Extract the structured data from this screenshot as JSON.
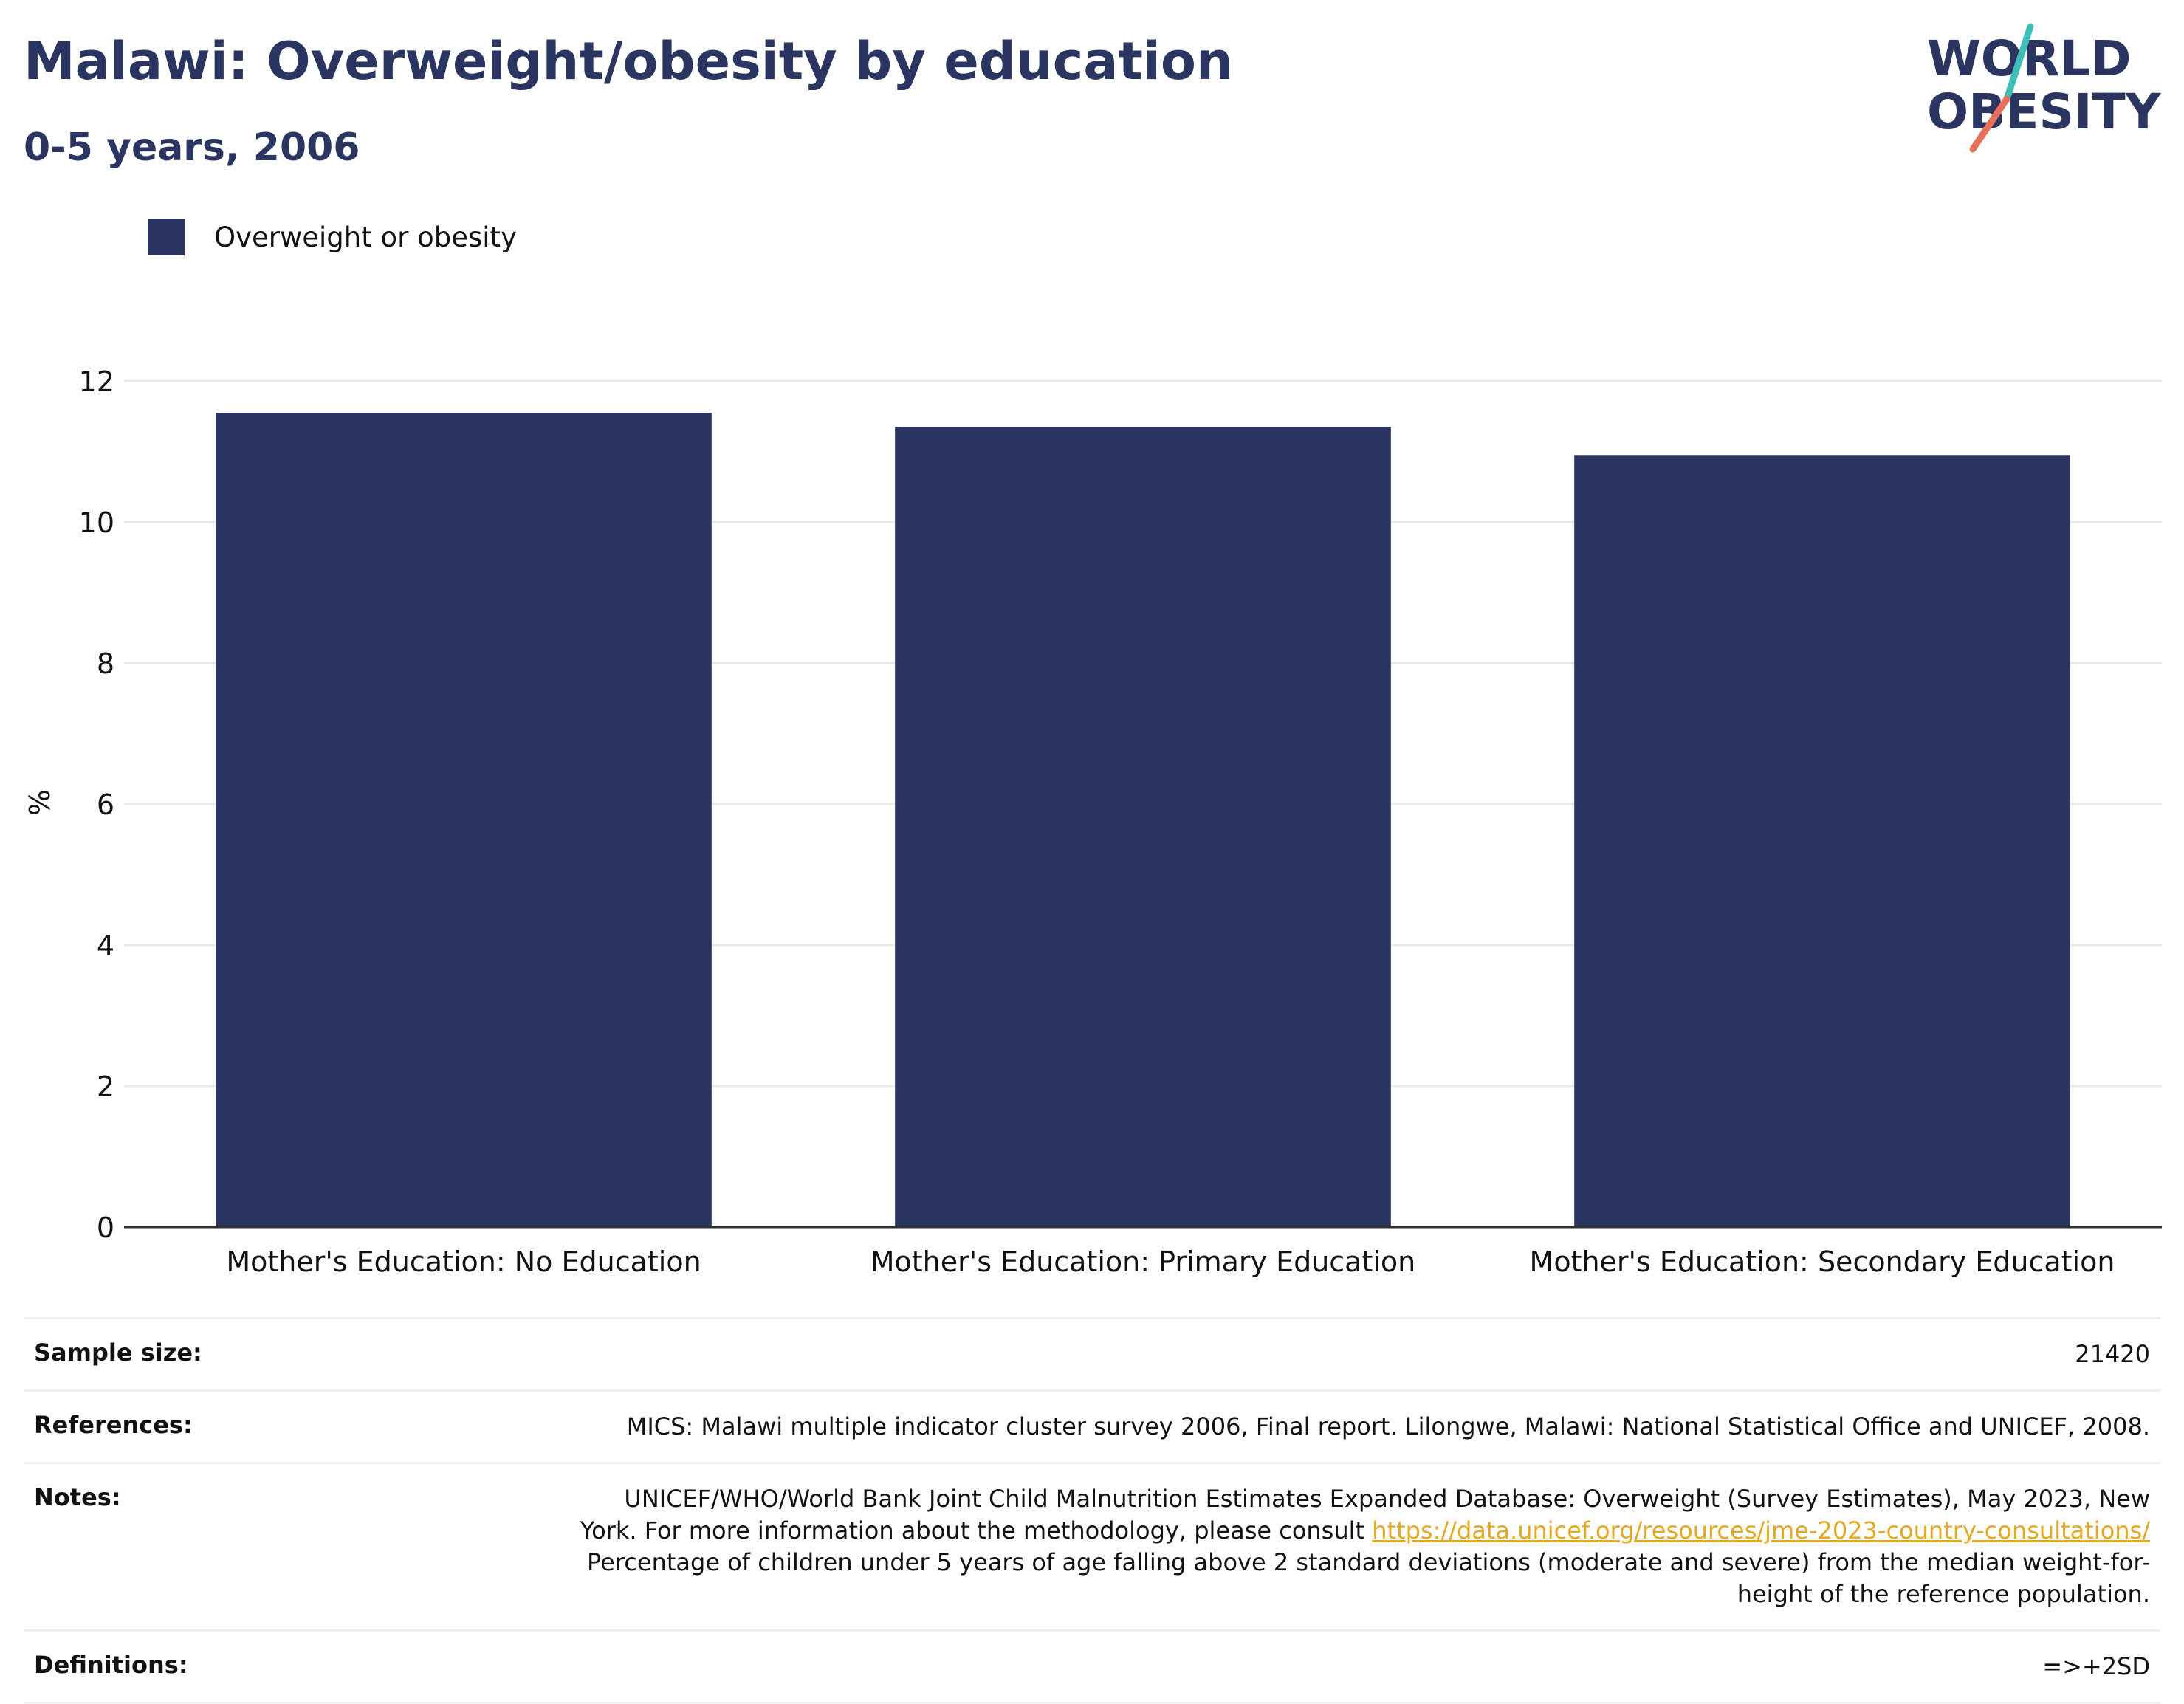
{
  "header": {
    "title": "Malawi: Overweight/obesity by education",
    "subtitle": "0-5 years, 2006"
  },
  "logo": {
    "line1": "WORLD",
    "line2": "OBESITY",
    "colors": {
      "text": "#2a3561",
      "slash_top": "#3dbfb8",
      "slash_bottom": "#e8705a"
    }
  },
  "colors": {
    "bar": "#2a3561",
    "grid": "#e8e8e8",
    "axis": "#333333",
    "link": "#e6a820"
  },
  "chart_data": {
    "type": "bar",
    "categories": [
      "Mother's Education: No Education",
      "Mother's Education: Primary Education",
      "Mother's Education: Secondary Education"
    ],
    "series": [
      {
        "name": "Overweight or obesity",
        "values": [
          11.55,
          11.35,
          10.95
        ]
      }
    ],
    "ylabel": "%",
    "ylim": [
      0,
      12
    ],
    "yticks": [
      0,
      2,
      4,
      6,
      8,
      10,
      12
    ],
    "grid": true,
    "legend": "top-left"
  },
  "info_table": {
    "sample_size": {
      "label": "Sample size:",
      "value": "21420"
    },
    "references": {
      "label": "References:",
      "value": "MICS: Malawi multiple indicator cluster survey 2006, Final report. Lilongwe, Malawi: National Statistical Office and UNICEF, 2008."
    },
    "notes": {
      "label": "Notes:",
      "line1": "UNICEF/WHO/World Bank Joint Child Malnutrition Estimates Expanded Database: Overweight (Survey Estimates), May 2023, New",
      "line2": "York. For more information about the methodology, please consult ",
      "link": "https://data.unicef.org/resources/jme-2023-country-consultations/",
      "line3": "Percentage of children under 5 years of age falling above 2 standard deviations (moderate and severe) from the median weight-for-",
      "line4": "height of the reference population."
    },
    "definitions": {
      "label": "Definitions:",
      "value": "=>+2SD"
    }
  }
}
